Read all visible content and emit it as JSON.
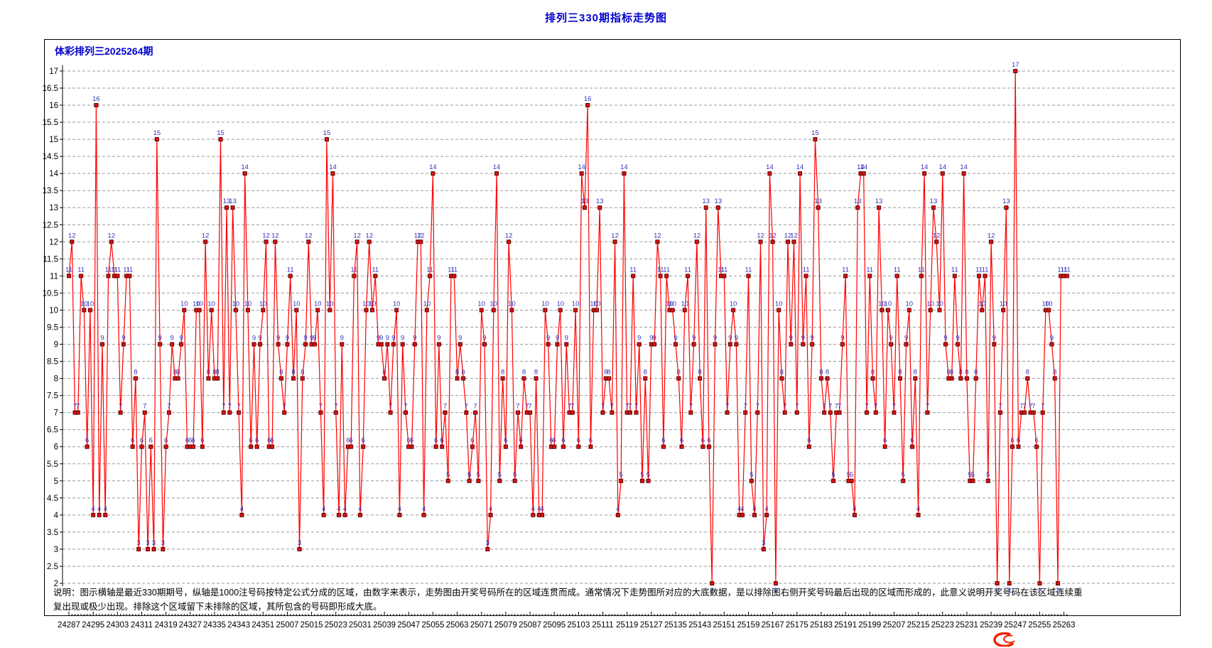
{
  "page_title": "排列三330期指标走势图",
  "chart_header": "体彩排列三2025264期",
  "footnote": {
    "line1": "说明：图示横轴是最近330期期号，纵轴是1000注号码按特定公式分成的区域，由数字来表示，走势图由开奖号码所在的区域连贯而成。通常情况下走势图所对应的大底数据，是以排除图右侧开奖号码最后出现的区域而形成的，此意义说明开奖号码在该区域连续重",
    "line2": "复出现或极少出现。排除这个区域留下未排除的区域，其所包含的号码即形成大底。"
  },
  "colors": {
    "title_blue": "#0000cc",
    "line_red": "#ff0000",
    "marker_fill": "#dd1111",
    "marker_stroke": "#600000",
    "point_label_blue": "#3333bb",
    "grid_gray": "#999999",
    "axis_black": "#000000",
    "watermark_red": "#ee2200"
  },
  "chart_data": {
    "type": "line",
    "title": "排列三330期指标走势图",
    "series_name": "开奖号码所在区域",
    "periods_note": "330 consecutive draw periods, 24287-24352 then 25001-25264",
    "x_tick_labels": [
      "24287",
      "24295",
      "24303",
      "24311",
      "24319",
      "24327",
      "24335",
      "24343",
      "24351",
      "25007",
      "25015",
      "25023",
      "25031",
      "25039",
      "25047",
      "25055",
      "25063",
      "25071",
      "25079",
      "25087",
      "25095",
      "25103",
      "25111",
      "25119",
      "25127",
      "25135",
      "25143",
      "25151",
      "25159",
      "25167",
      "25175",
      "25183",
      "25191",
      "25199",
      "25207",
      "25215",
      "25223",
      "25231",
      "25239",
      "25247",
      "25255",
      "25263"
    ],
    "x_label_every_n_points": 8,
    "ylim": [
      2,
      17
    ],
    "y_tick_step": 0.5,
    "grid": "horizontal dashed at every 0.5",
    "legend_position": "none",
    "point_labels_shown": true,
    "values": [
      11,
      12,
      7,
      7,
      11,
      10,
      6,
      10,
      4,
      16,
      4,
      9,
      4,
      11,
      12,
      11,
      11,
      7,
      9,
      11,
      11,
      6,
      8,
      3,
      6,
      7,
      3,
      6,
      3,
      15,
      9,
      3,
      6,
      7,
      9,
      8,
      8,
      9,
      10,
      6,
      6,
      6,
      10,
      10,
      6,
      12,
      8,
      10,
      8,
      8,
      15,
      7,
      13,
      7,
      13,
      10,
      7,
      4,
      14,
      10,
      6,
      9,
      6,
      9,
      10,
      12,
      6,
      6,
      12,
      9,
      8,
      7,
      9,
      11,
      8,
      10,
      3,
      8,
      9,
      12,
      9,
      9,
      10,
      7,
      4,
      15,
      10,
      14,
      7,
      4,
      9,
      4,
      6,
      6,
      11,
      12,
      4,
      6,
      10,
      12,
      10,
      11,
      9,
      9,
      8,
      9,
      7,
      9,
      10,
      4,
      9,
      7,
      6,
      6,
      9,
      12,
      12,
      4,
      10,
      11,
      14,
      6,
      9,
      6,
      7,
      5,
      11,
      11,
      8,
      9,
      8,
      7,
      5,
      6,
      7,
      5,
      10,
      9,
      3,
      4,
      10,
      14,
      5,
      8,
      6,
      12,
      10,
      5,
      7,
      6,
      8,
      7,
      7,
      4,
      8,
      4,
      4,
      10,
      9,
      6,
      6,
      9,
      10,
      6,
      9,
      7,
      7,
      10,
      6,
      14,
      13,
      16,
      6,
      10,
      10,
      13,
      7,
      8,
      8,
      7,
      12,
      4,
      5,
      14,
      7,
      7,
      11,
      7,
      9,
      5,
      8,
      5,
      9,
      9,
      12,
      11,
      6,
      11,
      10,
      10,
      9,
      8,
      6,
      10,
      11,
      7,
      9,
      12,
      8,
      6,
      13,
      6,
      2,
      9,
      13,
      11,
      11,
      7,
      9,
      10,
      9,
      4,
      4,
      7,
      11,
      5,
      4,
      7,
      12,
      3,
      4,
      14,
      12,
      2,
      10,
      8,
      7,
      12,
      9,
      12,
      7,
      14,
      9,
      11,
      6,
      9,
      15,
      13,
      8,
      7,
      8,
      7,
      5,
      7,
      7,
      9,
      11,
      5,
      5,
      4,
      13,
      14,
      14,
      7,
      11,
      8,
      7,
      13,
      10,
      6,
      10,
      9,
      7,
      11,
      8,
      5,
      9,
      10,
      6,
      8,
      4,
      11,
      14,
      7,
      10,
      13,
      12,
      10,
      14,
      9,
      8,
      8,
      11,
      9,
      8,
      14,
      8,
      5,
      5,
      8,
      11,
      10,
      11,
      5,
      12,
      9,
      2,
      7,
      10,
      13,
      2,
      6,
      17,
      6,
      7,
      7,
      8,
      7,
      7,
      6,
      2,
      7,
      10,
      10,
      9,
      8,
      2,
      11,
      11,
      11
    ]
  }
}
